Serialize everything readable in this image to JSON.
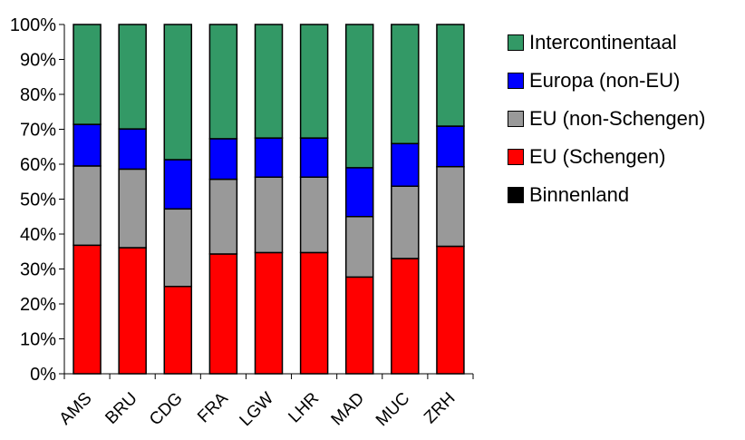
{
  "chart_data": {
    "type": "bar",
    "stacked": true,
    "categories": [
      "AMS",
      "BRU",
      "CDG",
      "FRA",
      "LGW",
      "LHR",
      "MAD",
      "MUC",
      "ZRH"
    ],
    "series": [
      {
        "name": "Binnenland",
        "color": "#000000",
        "values": [
          0,
          0,
          0,
          0,
          0,
          0,
          0,
          0,
          0
        ]
      },
      {
        "name": "EU (Schengen)",
        "color": "#ff0000",
        "values": [
          36.8,
          36.1,
          25.0,
          34.3,
          34.7,
          34.7,
          27.7,
          33.0,
          36.5
        ]
      },
      {
        "name": "EU (non-Schengen)",
        "color": "#999999",
        "values": [
          22.7,
          22.5,
          22.2,
          21.4,
          21.6,
          21.6,
          17.3,
          20.7,
          22.8
        ]
      },
      {
        "name": "Europa (non-EU)",
        "color": "#0000ff",
        "values": [
          11.9,
          11.5,
          14.1,
          11.6,
          11.2,
          11.2,
          14.0,
          12.2,
          11.6
        ]
      },
      {
        "name": "Intercontinentaal",
        "color": "#339966",
        "values": [
          28.6,
          29.9,
          38.7,
          32.7,
          32.5,
          32.5,
          41.0,
          34.1,
          29.1
        ]
      }
    ],
    "y_ticks": [
      "0%",
      "10%",
      "20%",
      "30%",
      "40%",
      "50%",
      "60%",
      "70%",
      "80%",
      "90%",
      "100%"
    ],
    "ylim": [
      0,
      100
    ],
    "y_unit": "%",
    "legend_order": [
      "Intercontinentaal",
      "Europa (non-EU)",
      "EU (non-Schengen)",
      "EU (Schengen)",
      "Binnenland"
    ],
    "legend_position": "right",
    "grid": false
  }
}
